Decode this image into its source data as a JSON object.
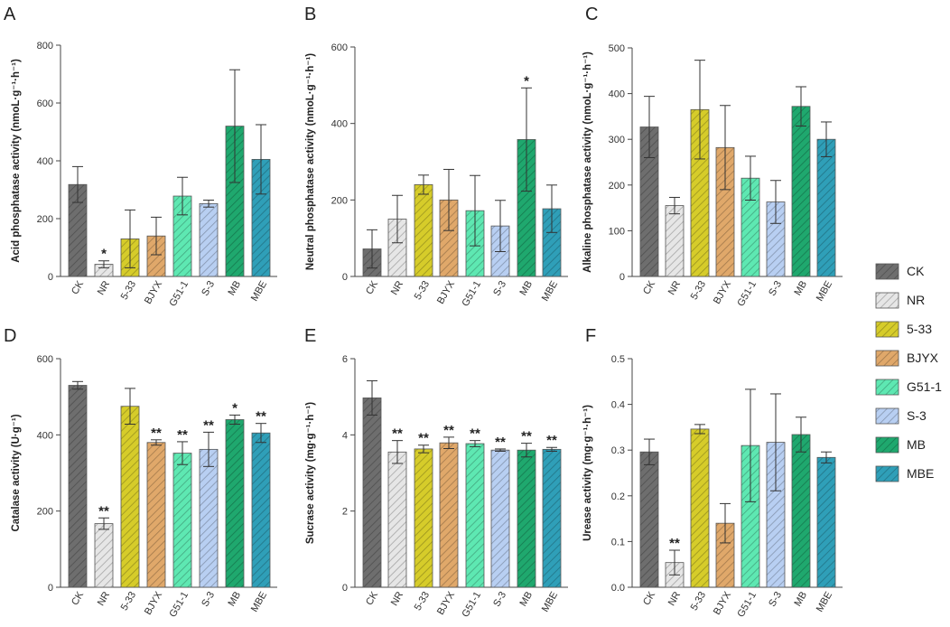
{
  "colors": {
    "CK": "#6e6e6e",
    "NR": "#e6e6e6",
    "5-33": "#d6cc2a",
    "BJYX": "#e0a86a",
    "G51-1": "#5ee8b2",
    "S-3": "#b8cff2",
    "MB": "#1fa86e",
    "MBE": "#2f9fb8"
  },
  "legend": {
    "entries": [
      "CK",
      "NR",
      "5-33",
      "BJYX",
      "G51-1",
      "S-3",
      "MB",
      "MBE"
    ]
  },
  "chart_data": [
    {
      "panel": "A",
      "type": "bar",
      "ylabel": "Acid phosphatase activity (nmoL·g⁻¹·h⁻¹)",
      "categories": [
        "CK",
        "NR",
        "5-33",
        "BJYX",
        "G51-1",
        "S-3",
        "MB",
        "MBE"
      ],
      "values": [
        318,
        42,
        130,
        140,
        278,
        252,
        520,
        405
      ],
      "errors": [
        62,
        12,
        100,
        65,
        65,
        12,
        195,
        120
      ],
      "sig": [
        "",
        "*",
        "",
        "",
        "",
        "",
        "",
        ""
      ],
      "ylim": [
        0,
        800
      ],
      "yticks": [
        0,
        200,
        400,
        600,
        800
      ]
    },
    {
      "panel": "B",
      "type": "bar",
      "ylabel": "Neutral phosphatase activity (nmoL·g⁻¹·h⁻¹)",
      "categories": [
        "CK",
        "NR",
        "5-33",
        "BJYX",
        "G51-1",
        "S-3",
        "MB",
        "MBE"
      ],
      "values": [
        72,
        150,
        240,
        200,
        172,
        132,
        358,
        177
      ],
      "errors": [
        50,
        62,
        25,
        80,
        92,
        67,
        135,
        62
      ],
      "sig": [
        "",
        "",
        "",
        "",
        "",
        "",
        "*",
        ""
      ],
      "ylim": [
        0,
        600
      ],
      "yticks": [
        0,
        200,
        400,
        600
      ]
    },
    {
      "panel": "C",
      "type": "bar",
      "ylabel": "Alkaline phosphatase activity (nmoL·g⁻¹·h⁻¹)",
      "categories": [
        "CK",
        "NR",
        "5-33",
        "BJYX",
        "G51-1",
        "S-3",
        "MB",
        "MBE"
      ],
      "values": [
        327,
        155,
        365,
        282,
        215,
        163,
        372,
        300
      ],
      "errors": [
        67,
        18,
        108,
        92,
        48,
        47,
        43,
        38
      ],
      "sig": [
        "",
        "",
        "",
        "",
        "",
        "",
        "",
        ""
      ],
      "ylim": [
        0,
        500
      ],
      "yticks": [
        0,
        100,
        200,
        300,
        400,
        500
      ]
    },
    {
      "panel": "D",
      "type": "bar",
      "ylabel": "Catalase activity (U·g⁻¹)",
      "categories": [
        "CK",
        "NR",
        "5-33",
        "BJYX",
        "G51-1",
        "S-3",
        "MB",
        "MBE"
      ],
      "values": [
        530,
        167,
        475,
        380,
        352,
        362,
        440,
        405
      ],
      "errors": [
        10,
        15,
        47,
        7,
        30,
        45,
        12,
        25
      ],
      "sig": [
        "",
        "**",
        "",
        "**",
        "**",
        "**",
        "*",
        "**"
      ],
      "ylim": [
        0,
        600
      ],
      "yticks": [
        0,
        200,
        400,
        600
      ]
    },
    {
      "panel": "E",
      "type": "bar",
      "ylabel": "Sucrase activity (mg·g⁻¹·h⁻¹)",
      "categories": [
        "CK",
        "NR",
        "5-33",
        "BJYX",
        "G51-1",
        "S-3",
        "MB",
        "MBE"
      ],
      "values": [
        4.97,
        3.55,
        3.63,
        3.79,
        3.77,
        3.6,
        3.6,
        3.62
      ],
      "errors": [
        0.45,
        0.3,
        0.1,
        0.15,
        0.08,
        0.03,
        0.18,
        0.05
      ],
      "sig": [
        "",
        "**",
        "**",
        "**",
        "**",
        "**",
        "**",
        "**"
      ],
      "ylim": [
        0,
        6
      ],
      "yticks": [
        0,
        2,
        4,
        6
      ]
    },
    {
      "panel": "F",
      "type": "bar",
      "ylabel": "Urease activity (mg·g⁻¹·h⁻¹)",
      "categories": [
        "CK",
        "NR",
        "5-33",
        "BJYX",
        "G51-1",
        "S-3",
        "MB",
        "MBE"
      ],
      "values": [
        0.296,
        0.054,
        0.346,
        0.14,
        0.31,
        0.317,
        0.334,
        0.284
      ],
      "errors": [
        0.028,
        0.027,
        0.01,
        0.043,
        0.123,
        0.106,
        0.038,
        0.012
      ],
      "sig": [
        "",
        "**",
        "",
        "",
        "",
        "",
        "",
        ""
      ],
      "ylim": [
        0,
        0.5
      ],
      "yticks": [
        0.0,
        0.1,
        0.2,
        0.3,
        0.4,
        0.5
      ]
    }
  ]
}
